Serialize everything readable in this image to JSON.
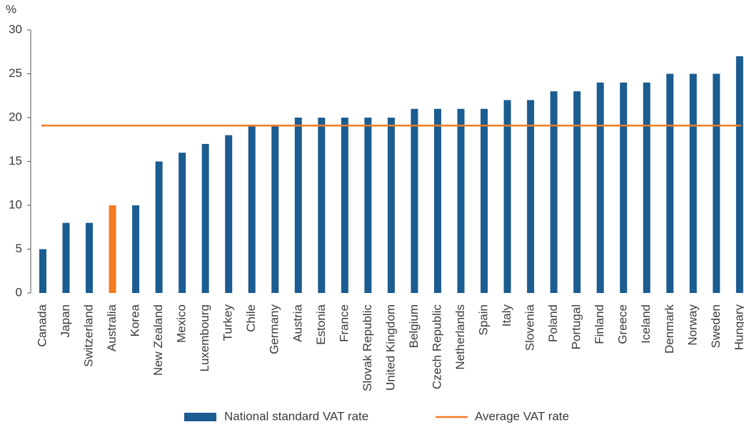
{
  "chart_data": {
    "type": "bar",
    "y_axis_label": "%",
    "categories": [
      "Canada",
      "Japan",
      "Switzerland",
      "Australia",
      "Korea",
      "New Zealand",
      "Mexico",
      "Luxembourg",
      "Turkey",
      "Chile",
      "Germany",
      "Austria",
      "Estonia",
      "France",
      "Slovak Republic",
      "United Kingdom",
      "Belgium",
      "Czech Republic",
      "Netherlands",
      "Spain",
      "Italy",
      "Slovenia",
      "Poland",
      "Portugal",
      "Finland",
      "Greece",
      "Iceland",
      "Denmark",
      "Norway",
      "Sweden",
      "Hungary"
    ],
    "series": [
      {
        "name": "National standard VAT rate",
        "color": "#1b5c91",
        "values": [
          5,
          8,
          8,
          10,
          10,
          15,
          16,
          17,
          18,
          19,
          19,
          20,
          20,
          20,
          20,
          20,
          21,
          21,
          21,
          21,
          22,
          22,
          23,
          23,
          24,
          24,
          24,
          25,
          25,
          25,
          27
        ],
        "colors": [
          "#1b5c91",
          "#1b5c91",
          "#1b5c91",
          "#f47b20",
          "#1b5c91",
          "#1b5c91",
          "#1b5c91",
          "#1b5c91",
          "#1b5c91",
          "#1b5c91",
          "#1b5c91",
          "#1b5c91",
          "#1b5c91",
          "#1b5c91",
          "#1b5c91",
          "#1b5c91",
          "#1b5c91",
          "#1b5c91",
          "#1b5c91",
          "#1b5c91",
          "#1b5c91",
          "#1b5c91",
          "#1b5c91",
          "#1b5c91",
          "#1b5c91",
          "#1b5c91",
          "#1b5c91",
          "#1b5c91",
          "#1b5c91",
          "#1b5c91",
          "#1b5c91"
        ]
      }
    ],
    "reference_line": {
      "name": "Average VAT rate",
      "value": 19.1,
      "color": "#f47b20"
    },
    "ylim": [
      0,
      30
    ],
    "yticks": [
      0,
      5,
      10,
      15,
      20,
      25,
      30
    ],
    "grid": false
  }
}
